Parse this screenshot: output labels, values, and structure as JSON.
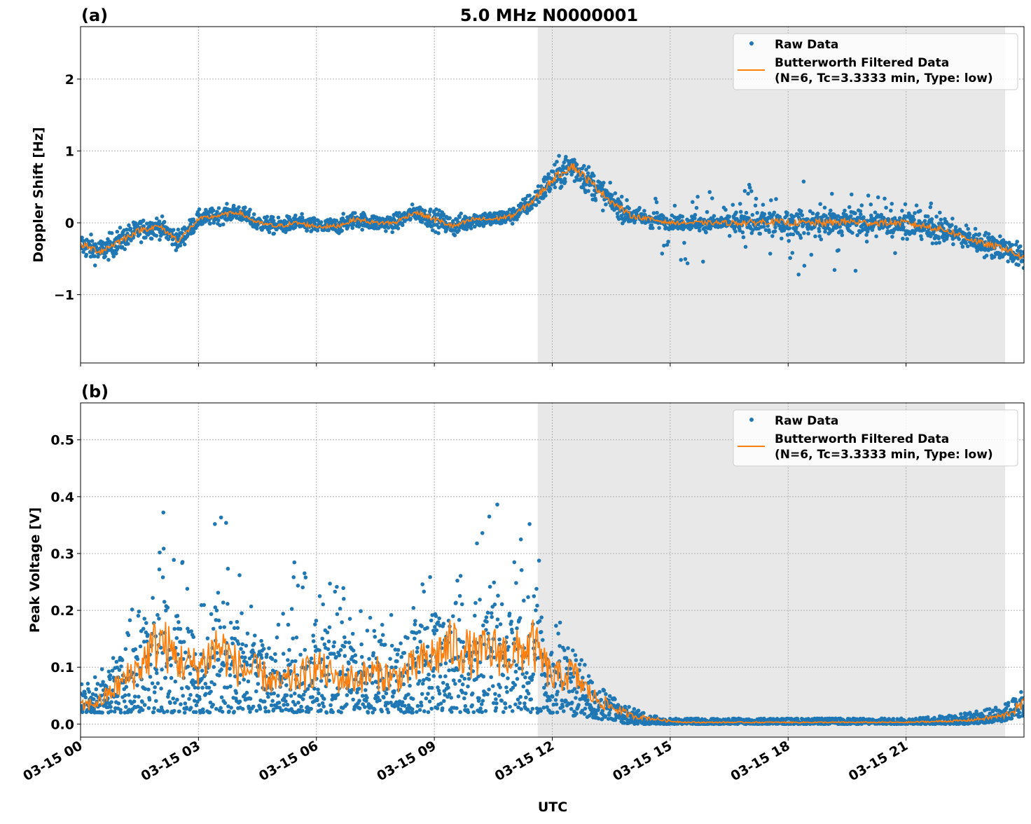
{
  "title": "5.0 MHz N0000001",
  "xlabel": "UTC",
  "x_tick_labels": [
    "03-15 00",
    "03-15 03",
    "03-15 06",
    "03-15 09",
    "03-15 12",
    "03-15 15",
    "03-15 18",
    "03-15 21"
  ],
  "legend": {
    "raw": "Raw Data",
    "filtered_line1": "Butterworth Filtered Data",
    "filtered_line2": "(N=6, Tc=3.3333 min, Type: low)"
  },
  "colors": {
    "raw": "#1f77b4",
    "filtered": "#ff7f0e",
    "shade": "#e8e8e8"
  },
  "chart_data": [
    {
      "type": "scatter+line",
      "panel_label": "(a)",
      "ylabel": "Doppler Shift [Hz]",
      "xlim_hours_utc": [
        0,
        24
      ],
      "ylim": [
        -1.95,
        2.73
      ],
      "y_ticks": [
        -1,
        0,
        1,
        2
      ],
      "y_tick_labels": [
        "−1",
        "0",
        "1",
        "2"
      ],
      "grid": true,
      "legend_position": "top-right",
      "shaded_region_hours_utc": [
        11.63,
        23.52
      ],
      "x_hours": [
        0,
        0.5,
        1,
        1.5,
        2,
        2.5,
        3,
        3.5,
        4,
        4.5,
        5,
        5.5,
        6,
        6.5,
        7,
        7.5,
        8,
        8.5,
        9,
        9.5,
        10,
        10.5,
        11,
        11.5,
        12,
        12.5,
        13,
        13.5,
        14,
        14.5,
        15,
        15.5,
        16,
        16.5,
        17,
        17.5,
        18,
        18.5,
        19,
        19.5,
        20,
        20.5,
        21,
        21.5,
        22,
        22.5,
        23,
        23.5,
        24
      ],
      "filtered": [
        -0.3,
        -0.4,
        -0.25,
        -0.1,
        -0.05,
        -0.25,
        0.05,
        0.1,
        0.15,
        0.0,
        -0.05,
        0.0,
        -0.05,
        -0.05,
        0.05,
        0.0,
        0.0,
        0.15,
        0.05,
        -0.05,
        0.05,
        0.05,
        0.1,
        0.3,
        0.6,
        0.8,
        0.55,
        0.3,
        0.1,
        0.05,
        0.0,
        0.0,
        0.0,
        0.0,
        0.0,
        0.02,
        0.0,
        0.0,
        0.0,
        0.02,
        0.0,
        0.0,
        0.0,
        -0.05,
        -0.1,
        -0.2,
        -0.3,
        -0.35,
        -0.5
      ],
      "raw_spread": [
        0.3,
        0.3,
        0.3,
        0.25,
        0.25,
        0.25,
        0.2,
        0.2,
        0.2,
        0.2,
        0.2,
        0.2,
        0.2,
        0.2,
        0.2,
        0.2,
        0.2,
        0.2,
        0.25,
        0.25,
        0.2,
        0.2,
        0.2,
        0.25,
        0.35,
        0.4,
        0.35,
        0.3,
        0.25,
        0.2,
        0.15,
        0.2,
        0.2,
        0.25,
        0.3,
        0.3,
        0.3,
        0.3,
        0.35,
        0.35,
        0.3,
        0.3,
        0.3,
        0.3,
        0.3,
        0.3,
        0.3,
        0.3,
        0.3
      ]
    },
    {
      "type": "scatter+line",
      "panel_label": "(b)",
      "ylabel": "Peak Voltage [V]",
      "xlim_hours_utc": [
        0,
        24
      ],
      "ylim": [
        -0.023,
        0.565
      ],
      "y_ticks": [
        0,
        0.1,
        0.2,
        0.3,
        0.4,
        0.5
      ],
      "y_tick_labels": [
        "0.0",
        "0.1",
        "0.2",
        "0.3",
        "0.4",
        "0.5"
      ],
      "grid": true,
      "legend_position": "top-right",
      "shaded_region_hours_utc": [
        11.63,
        23.52
      ],
      "x_hours": [
        0,
        0.5,
        1,
        1.5,
        2,
        2.5,
        3,
        3.5,
        4,
        4.5,
        5,
        5.5,
        6,
        6.5,
        7,
        7.5,
        8,
        8.5,
        9,
        9.5,
        10,
        10.5,
        11,
        11.5,
        12,
        12.5,
        13,
        13.5,
        14,
        14.5,
        15,
        15.5,
        16,
        16.5,
        17,
        17.5,
        18,
        18.5,
        19,
        19.5,
        20,
        20.5,
        21,
        21.5,
        22,
        22.5,
        23,
        23.5,
        24
      ],
      "filtered": [
        0.03,
        0.04,
        0.07,
        0.1,
        0.15,
        0.11,
        0.1,
        0.14,
        0.1,
        0.09,
        0.07,
        0.08,
        0.1,
        0.08,
        0.08,
        0.09,
        0.08,
        0.1,
        0.12,
        0.14,
        0.12,
        0.13,
        0.12,
        0.14,
        0.08,
        0.09,
        0.05,
        0.03,
        0.015,
        0.01,
        0.005,
        0.003,
        0.003,
        0.003,
        0.003,
        0.003,
        0.003,
        0.003,
        0.003,
        0.003,
        0.003,
        0.003,
        0.003,
        0.004,
        0.005,
        0.006,
        0.01,
        0.015,
        0.035
      ],
      "raw_max": [
        0.07,
        0.1,
        0.15,
        0.3,
        0.4,
        0.3,
        0.25,
        0.4,
        0.3,
        0.2,
        0.2,
        0.3,
        0.25,
        0.25,
        0.25,
        0.2,
        0.2,
        0.25,
        0.4,
        0.4,
        0.35,
        0.4,
        0.35,
        0.4,
        0.2,
        0.15,
        0.08,
        0.05,
        0.03,
        0.015,
        0.01,
        0.01,
        0.01,
        0.01,
        0.01,
        0.01,
        0.01,
        0.01,
        0.01,
        0.01,
        0.01,
        0.01,
        0.01,
        0.012,
        0.015,
        0.02,
        0.025,
        0.035,
        0.06
      ],
      "raw_min": [
        0.02,
        0.02,
        0.02,
        0.02,
        0.02,
        0.02,
        0.02,
        0.02,
        0.02,
        0.02,
        0.02,
        0.02,
        0.02,
        0.02,
        0.02,
        0.02,
        0.02,
        0.02,
        0.02,
        0.02,
        0.02,
        0.02,
        0.02,
        0.02,
        0.02,
        0.015,
        0.01,
        0.005,
        0.0,
        0.0,
        0.0,
        0.0,
        0.0,
        0.0,
        0.0,
        0.0,
        0.0,
        0.0,
        0.0,
        0.0,
        0.0,
        0.0,
        0.0,
        0.0,
        0.0,
        0.0,
        0.002,
        0.005,
        0.015
      ]
    }
  ]
}
